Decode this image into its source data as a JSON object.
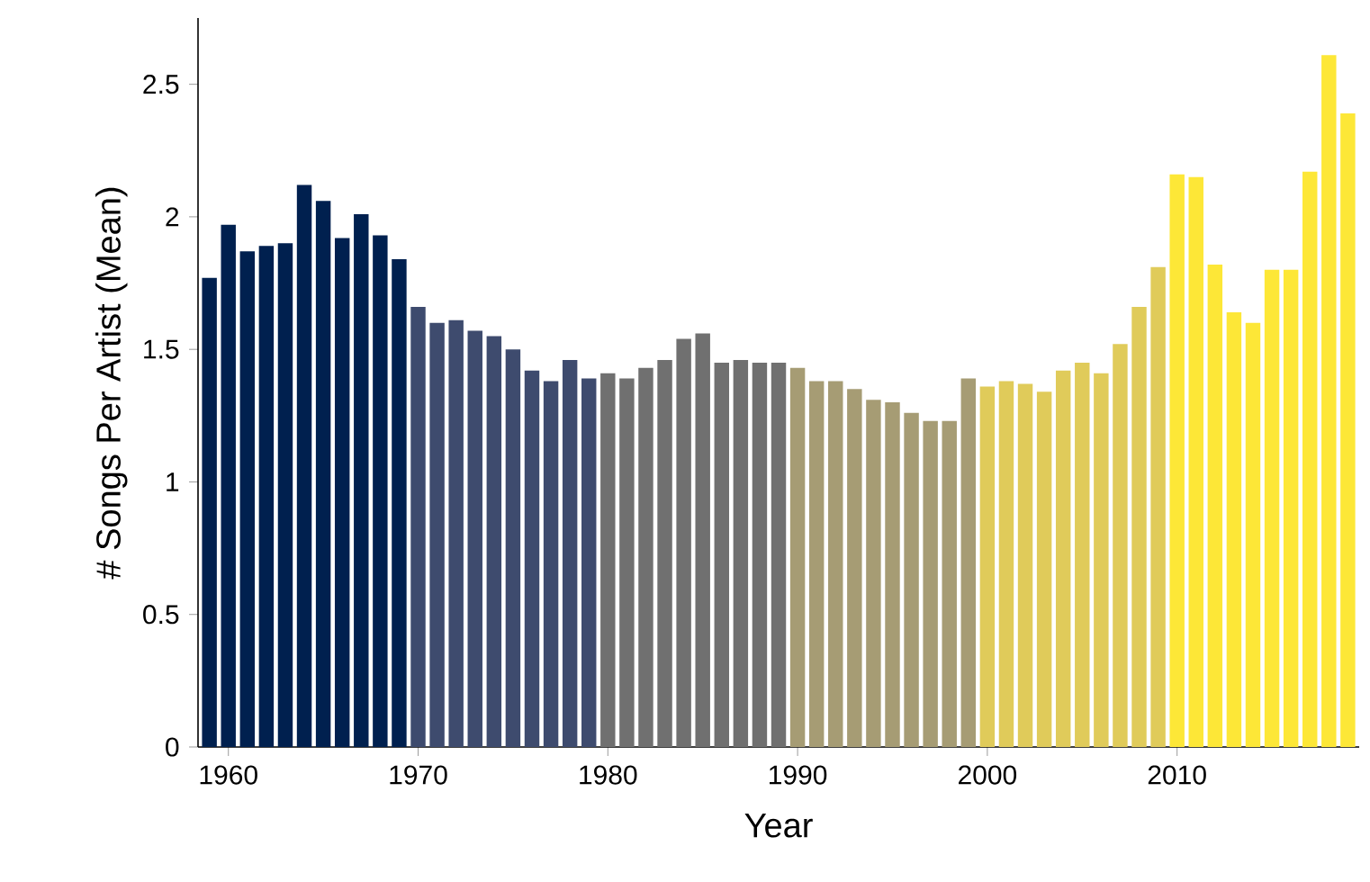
{
  "chart_data": {
    "type": "bar",
    "xlabel": "Year",
    "ylabel": "# Songs Per Artist (Mean)",
    "x": [
      1959,
      1960,
      1961,
      1962,
      1963,
      1964,
      1965,
      1966,
      1967,
      1968,
      1969,
      1970,
      1971,
      1972,
      1973,
      1974,
      1975,
      1976,
      1977,
      1978,
      1979,
      1980,
      1981,
      1982,
      1983,
      1984,
      1985,
      1986,
      1987,
      1988,
      1989,
      1990,
      1991,
      1992,
      1993,
      1994,
      1995,
      1996,
      1997,
      1998,
      1999,
      2000,
      2001,
      2002,
      2003,
      2004,
      2005,
      2006,
      2007,
      2008,
      2009,
      2010,
      2011,
      2012,
      2013,
      2014,
      2015,
      2016,
      2017,
      2018,
      2019
    ],
    "values": [
      1.77,
      1.97,
      1.87,
      1.89,
      1.9,
      2.12,
      2.06,
      1.92,
      2.01,
      1.93,
      1.84,
      1.66,
      1.6,
      1.61,
      1.57,
      1.55,
      1.5,
      1.42,
      1.38,
      1.46,
      1.39,
      1.41,
      1.39,
      1.43,
      1.46,
      1.54,
      1.56,
      1.45,
      1.46,
      1.45,
      1.45,
      1.43,
      1.38,
      1.38,
      1.35,
      1.31,
      1.3,
      1.26,
      1.23,
      1.23,
      1.39,
      1.36,
      1.38,
      1.37,
      1.34,
      1.42,
      1.45,
      1.41,
      1.52,
      1.66,
      1.81,
      2.16,
      2.15,
      1.82,
      1.64,
      1.6,
      1.8,
      1.8,
      2.17,
      2.61,
      2.39
    ],
    "colors": [
      "#00204f",
      "#00204f",
      "#00204f",
      "#00204f",
      "#00204f",
      "#00204f",
      "#00204f",
      "#00204f",
      "#00204f",
      "#00204f",
      "#00204f",
      "#3e4b6e",
      "#3e4b6e",
      "#3e4b6e",
      "#3e4b6e",
      "#3e4b6e",
      "#3e4b6e",
      "#3e4b6e",
      "#3e4b6e",
      "#3e4b6e",
      "#3e4b6e",
      "#707070",
      "#707070",
      "#707070",
      "#707070",
      "#707070",
      "#707070",
      "#707070",
      "#707070",
      "#707070",
      "#707070",
      "#a69c74",
      "#a69c74",
      "#a69c74",
      "#a69c74",
      "#a69c74",
      "#a69c74",
      "#a69c74",
      "#a69c74",
      "#a69c74",
      "#a69c74",
      "#e0cb5a",
      "#e0cb5a",
      "#e0cb5a",
      "#e0cb5a",
      "#e0cb5a",
      "#e0cb5a",
      "#e0cb5a",
      "#e0cb5a",
      "#e0cb5a",
      "#e0cb5a",
      "#fde737",
      "#fde737",
      "#fde737",
      "#fde737",
      "#fde737",
      "#fde737",
      "#fde737",
      "#fde737",
      "#fde737",
      "#fde737"
    ],
    "xlim": [
      1958.4,
      2019.6
    ],
    "ylim": [
      0,
      2.75
    ],
    "xticks": [
      1960,
      1970,
      1980,
      1990,
      2000,
      2010
    ],
    "yticks": [
      0,
      0.5,
      1,
      1.5,
      2,
      2.5
    ]
  }
}
